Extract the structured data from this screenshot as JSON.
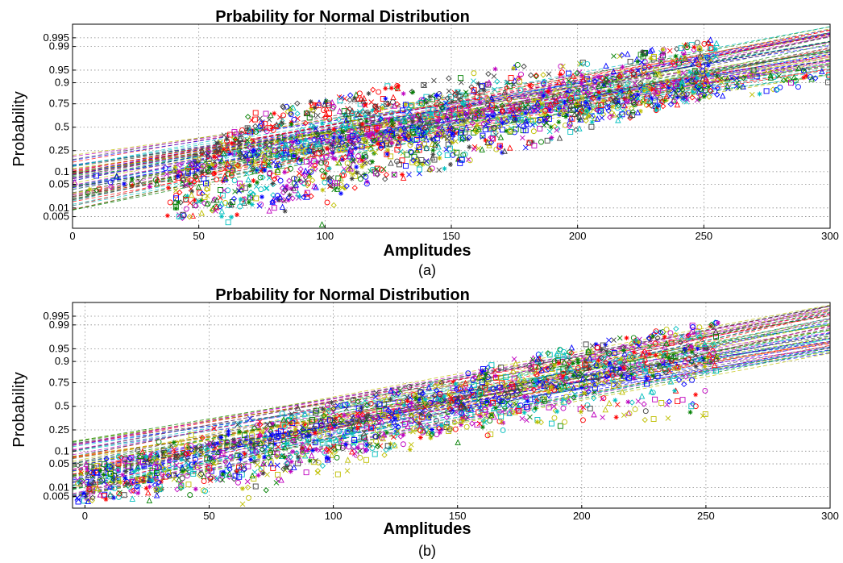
{
  "chart_data": [
    {
      "id": "a",
      "type": "scatter",
      "title": "Prbability for Normal Distribution",
      "xlabel": "Amplitudes",
      "ylabel": "Probability",
      "caption": "(a)",
      "xlim": [
        0,
        300
      ],
      "xticks": [
        0,
        50,
        100,
        150,
        200,
        250,
        300
      ],
      "xtick_labels": [
        "0",
        "50",
        "100",
        "150",
        "200",
        "250",
        "300"
      ],
      "yscale": "normal-probability",
      "yticks": [
        0.005,
        0.01,
        0.05,
        0.1,
        0.25,
        0.5,
        0.75,
        0.9,
        0.95,
        0.99,
        0.995
      ],
      "ytick_labels": [
        "0.005",
        "0.01",
        "0.05",
        "0.1",
        "0.25",
        "0.5",
        "0.75",
        "0.9",
        "0.95",
        "0.99",
        "0.995"
      ],
      "ylim": [
        0.0018,
        0.9985
      ],
      "grid": true,
      "data_x_range": [
        38,
        255
      ],
      "fit_line_x_range": [
        0,
        300
      ],
      "note": "",
      "series": [
        {
          "x": [
            0,
            50,
            75,
            100,
            125,
            150,
            175,
            200,
            225,
            250,
            275,
            300
          ],
          "y": [
            0.05,
            0.1,
            0.2,
            0.3,
            0.4,
            0.5,
            0.62,
            0.7,
            0.8,
            0.85,
            0.9,
            0.93
          ]
        },
        {
          "x": [
            0,
            50,
            75,
            100,
            125,
            150,
            175,
            200,
            225,
            250,
            275,
            300
          ],
          "y": [
            0.04,
            0.09,
            0.18,
            0.32,
            0.45,
            0.55,
            0.65,
            0.75,
            0.83,
            0.88,
            0.92,
            0.95
          ]
        },
        {
          "x": [
            40,
            50,
            60,
            70,
            80,
            90,
            100,
            110,
            120,
            130
          ],
          "y": [
            0.01,
            0.1,
            0.3,
            0.5,
            0.6,
            0.65,
            0.7,
            0.75,
            0.8,
            0.85
          ]
        },
        {
          "x": [
            60,
            70,
            80,
            90,
            100,
            110,
            120,
            140,
            160
          ],
          "y": [
            0.005,
            0.02,
            0.15,
            0.3,
            0.45,
            0.55,
            0.6,
            0.7,
            0.8
          ]
        },
        {
          "x": [
            80,
            90,
            100,
            110,
            120,
            140,
            160,
            180,
            200,
            220
          ],
          "y": [
            0.005,
            0.05,
            0.2,
            0.35,
            0.45,
            0.55,
            0.65,
            0.75,
            0.85,
            0.93
          ]
        },
        {
          "x": [
            100,
            110,
            120,
            140,
            160,
            180,
            200,
            220,
            240,
            255
          ],
          "y": [
            0.005,
            0.1,
            0.25,
            0.35,
            0.45,
            0.55,
            0.65,
            0.75,
            0.85,
            0.95
          ]
        },
        {
          "x": [
            50,
            60,
            70,
            80,
            100,
            120,
            140,
            160,
            180
          ],
          "y": [
            0.1,
            0.3,
            0.45,
            0.6,
            0.7,
            0.78,
            0.85,
            0.9,
            0.95
          ]
        },
        {
          "x": [
            120,
            140,
            160,
            180,
            200,
            220,
            240,
            255
          ],
          "y": [
            0.3,
            0.4,
            0.5,
            0.58,
            0.66,
            0.75,
            0.85,
            0.9
          ]
        }
      ]
    },
    {
      "id": "b",
      "type": "scatter",
      "title": "Prbability for Normal Distribution",
      "xlabel": "Amplitudes",
      "ylabel": "Probability",
      "caption": "(b)",
      "xlim": [
        -5,
        300
      ],
      "xticks": [
        0,
        50,
        100,
        150,
        200,
        250,
        300
      ],
      "xtick_labels": [
        "0",
        "50",
        "100",
        "150",
        "200",
        "250",
        "300"
      ],
      "yscale": "normal-probability",
      "yticks": [
        0.005,
        0.01,
        0.05,
        0.1,
        0.25,
        0.5,
        0.75,
        0.9,
        0.95,
        0.99,
        0.995
      ],
      "ytick_labels": [
        "0.005",
        "0.01",
        "0.05",
        "0.1",
        "0.25",
        "0.5",
        "0.75",
        "0.9",
        "0.95",
        "0.99",
        "0.995"
      ],
      "ylim": [
        0.0018,
        0.9985
      ],
      "grid": true,
      "data_x_range": [
        -5,
        256
      ],
      "fit_line_x_range": [
        -5,
        300
      ],
      "note": "",
      "series": [
        {
          "x": [
            0,
            50,
            100,
            150,
            200,
            255
          ],
          "y": [
            0.005,
            0.05,
            0.25,
            0.5,
            0.75,
            0.9
          ]
        },
        {
          "x": [
            0,
            50,
            100,
            150,
            200,
            255
          ],
          "y": [
            0.02,
            0.1,
            0.3,
            0.55,
            0.8,
            0.93
          ]
        },
        {
          "x": [
            0,
            50,
            100,
            150,
            200,
            255
          ],
          "y": [
            0.04,
            0.15,
            0.4,
            0.65,
            0.85,
            0.97
          ]
        },
        {
          "x": [
            20,
            60,
            100,
            150,
            200,
            255
          ],
          "y": [
            0.005,
            0.03,
            0.15,
            0.35,
            0.55,
            0.8
          ]
        },
        {
          "x": [
            40,
            80,
            120,
            160,
            200,
            255
          ],
          "y": [
            0.005,
            0.02,
            0.15,
            0.35,
            0.45,
            0.6
          ]
        },
        {
          "x": [
            60,
            100,
            140,
            180,
            220,
            255
          ],
          "y": [
            0.005,
            0.05,
            0.2,
            0.35,
            0.45,
            0.5
          ]
        },
        {
          "x": [
            0,
            40,
            80,
            120,
            160,
            200,
            255
          ],
          "y": [
            0.03,
            0.12,
            0.35,
            0.55,
            0.7,
            0.85,
            0.97
          ]
        },
        {
          "x": [
            10,
            50,
            90,
            130,
            170,
            210,
            255
          ],
          "y": [
            0.01,
            0.08,
            0.25,
            0.45,
            0.6,
            0.75,
            0.9
          ]
        }
      ]
    }
  ]
}
